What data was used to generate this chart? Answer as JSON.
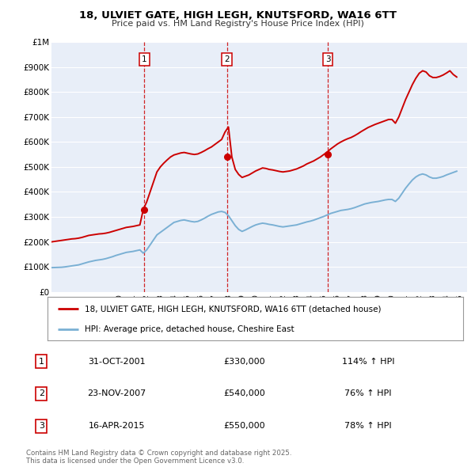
{
  "title": "18, ULVIET GATE, HIGH LEGH, KNUTSFORD, WA16 6TT",
  "subtitle": "Price paid vs. HM Land Registry's House Price Index (HPI)",
  "hpi_label": "HPI: Average price, detached house, Cheshire East",
  "property_label": "18, ULVIET GATE, HIGH LEGH, KNUTSFORD, WA16 6TT (detached house)",
  "property_color": "#cc0000",
  "hpi_color": "#7ab0d4",
  "bg_color": "#e8eef8",
  "grid_color": "#ffffff",
  "ylim": [
    0,
    1000000
  ],
  "yticks": [
    0,
    100000,
    200000,
    300000,
    400000,
    500000,
    600000,
    700000,
    800000,
    900000,
    1000000
  ],
  "ytick_labels": [
    "£0",
    "£100K",
    "£200K",
    "£300K",
    "£400K",
    "£500K",
    "£600K",
    "£700K",
    "£800K",
    "£900K",
    "£1M"
  ],
  "transactions": [
    {
      "num": 1,
      "date": "31-OCT-2001",
      "price": 330000,
      "year": 2001.83,
      "pct": "114%",
      "dir": "↑"
    },
    {
      "num": 2,
      "date": "23-NOV-2007",
      "price": 540000,
      "year": 2007.89,
      "pct": "76%",
      "dir": "↑"
    },
    {
      "num": 3,
      "date": "16-APR-2015",
      "price": 550000,
      "year": 2015.29,
      "pct": "78%",
      "dir": "↑"
    }
  ],
  "footer": "Contains HM Land Registry data © Crown copyright and database right 2025.\nThis data is licensed under the Open Government Licence v3.0.",
  "hpi_data": {
    "years": [
      1995.0,
      1995.25,
      1995.5,
      1995.75,
      1996.0,
      1996.25,
      1996.5,
      1996.75,
      1997.0,
      1997.25,
      1997.5,
      1997.75,
      1998.0,
      1998.25,
      1998.5,
      1998.75,
      1999.0,
      1999.25,
      1999.5,
      1999.75,
      2000.0,
      2000.25,
      2000.5,
      2000.75,
      2001.0,
      2001.25,
      2001.5,
      2001.75,
      2002.0,
      2002.25,
      2002.5,
      2002.75,
      2003.0,
      2003.25,
      2003.5,
      2003.75,
      2004.0,
      2004.25,
      2004.5,
      2004.75,
      2005.0,
      2005.25,
      2005.5,
      2005.75,
      2006.0,
      2006.25,
      2006.5,
      2006.75,
      2007.0,
      2007.25,
      2007.5,
      2007.75,
      2008.0,
      2008.25,
      2008.5,
      2008.75,
      2009.0,
      2009.25,
      2009.5,
      2009.75,
      2010.0,
      2010.25,
      2010.5,
      2010.75,
      2011.0,
      2011.25,
      2011.5,
      2011.75,
      2012.0,
      2012.25,
      2012.5,
      2012.75,
      2013.0,
      2013.25,
      2013.5,
      2013.75,
      2014.0,
      2014.25,
      2014.5,
      2014.75,
      2015.0,
      2015.25,
      2015.5,
      2015.75,
      2016.0,
      2016.25,
      2016.5,
      2016.75,
      2017.0,
      2017.25,
      2017.5,
      2017.75,
      2018.0,
      2018.25,
      2018.5,
      2018.75,
      2019.0,
      2019.25,
      2019.5,
      2019.75,
      2020.0,
      2020.25,
      2020.5,
      2020.75,
      2021.0,
      2021.25,
      2021.5,
      2021.75,
      2022.0,
      2022.25,
      2022.5,
      2022.75,
      2023.0,
      2023.25,
      2023.5,
      2023.75,
      2024.0,
      2024.25,
      2024.5,
      2024.75
    ],
    "values": [
      97000,
      97500,
      98000,
      98500,
      100000,
      102000,
      104000,
      106000,
      108000,
      112000,
      116000,
      120000,
      123000,
      126000,
      128000,
      130000,
      133000,
      137000,
      141000,
      146000,
      150000,
      154000,
      158000,
      160000,
      162000,
      165000,
      168000,
      155000,
      168000,
      188000,
      208000,
      228000,
      238000,
      248000,
      258000,
      268000,
      278000,
      282000,
      286000,
      288000,
      285000,
      282000,
      280000,
      282000,
      288000,
      295000,
      303000,
      310000,
      315000,
      320000,
      322000,
      318000,
      305000,
      285000,
      265000,
      250000,
      242000,
      248000,
      255000,
      262000,
      268000,
      272000,
      275000,
      273000,
      270000,
      268000,
      265000,
      262000,
      260000,
      262000,
      264000,
      266000,
      268000,
      272000,
      276000,
      280000,
      283000,
      287000,
      292000,
      297000,
      302000,
      308000,
      314000,
      318000,
      322000,
      326000,
      328000,
      330000,
      333000,
      337000,
      342000,
      347000,
      352000,
      355000,
      358000,
      360000,
      362000,
      365000,
      368000,
      370000,
      370000,
      362000,
      375000,
      395000,
      415000,
      432000,
      448000,
      460000,
      468000,
      472000,
      468000,
      460000,
      455000,
      455000,
      458000,
      462000,
      468000,
      473000,
      478000,
      483000
    ]
  },
  "property_data": {
    "years": [
      1995.0,
      1995.25,
      1995.5,
      1995.75,
      1996.0,
      1996.25,
      1996.5,
      1996.75,
      1997.0,
      1997.25,
      1997.5,
      1997.75,
      1998.0,
      1998.25,
      1998.5,
      1998.75,
      1999.0,
      1999.25,
      1999.5,
      1999.75,
      2000.0,
      2000.25,
      2000.5,
      2000.75,
      2001.0,
      2001.25,
      2001.5,
      2001.75,
      2002.0,
      2002.25,
      2002.5,
      2002.75,
      2003.0,
      2003.25,
      2003.5,
      2003.75,
      2004.0,
      2004.25,
      2004.5,
      2004.75,
      2005.0,
      2005.25,
      2005.5,
      2005.75,
      2006.0,
      2006.25,
      2006.5,
      2006.75,
      2007.0,
      2007.25,
      2007.5,
      2007.75,
      2008.0,
      2008.25,
      2008.5,
      2008.75,
      2009.0,
      2009.25,
      2009.5,
      2009.75,
      2010.0,
      2010.25,
      2010.5,
      2010.75,
      2011.0,
      2011.25,
      2011.5,
      2011.75,
      2012.0,
      2012.25,
      2012.5,
      2012.75,
      2013.0,
      2013.25,
      2013.5,
      2013.75,
      2014.0,
      2014.25,
      2014.5,
      2014.75,
      2015.0,
      2015.25,
      2015.5,
      2015.75,
      2016.0,
      2016.25,
      2016.5,
      2016.75,
      2017.0,
      2017.25,
      2017.5,
      2017.75,
      2018.0,
      2018.25,
      2018.5,
      2018.75,
      2019.0,
      2019.25,
      2019.5,
      2019.75,
      2020.0,
      2020.25,
      2020.5,
      2020.75,
      2021.0,
      2021.25,
      2021.5,
      2021.75,
      2022.0,
      2022.25,
      2022.5,
      2022.75,
      2023.0,
      2023.25,
      2023.5,
      2023.75,
      2024.0,
      2024.25,
      2024.5,
      2024.75
    ],
    "values": [
      200000,
      202000,
      204000,
      206000,
      208000,
      210000,
      212000,
      213000,
      215000,
      218000,
      222000,
      226000,
      228000,
      230000,
      232000,
      233000,
      235000,
      238000,
      242000,
      246000,
      250000,
      254000,
      258000,
      260000,
      262000,
      265000,
      268000,
      330000,
      360000,
      400000,
      440000,
      480000,
      500000,
      515000,
      528000,
      540000,
      548000,
      552000,
      556000,
      558000,
      555000,
      552000,
      550000,
      552000,
      558000,
      565000,
      573000,
      580000,
      590000,
      600000,
      610000,
      640000,
      660000,
      540000,
      490000,
      470000,
      458000,
      463000,
      468000,
      476000,
      484000,
      490000,
      496000,
      494000,
      490000,
      488000,
      485000,
      482000,
      480000,
      482000,
      484000,
      488000,
      492000,
      498000,
      504000,
      512000,
      518000,
      524000,
      532000,
      540000,
      550000,
      560000,
      572000,
      582000,
      592000,
      600000,
      607000,
      613000,
      618000,
      625000,
      633000,
      642000,
      650000,
      658000,
      664000,
      670000,
      675000,
      680000,
      685000,
      690000,
      690000,
      675000,
      700000,
      735000,
      770000,
      800000,
      830000,
      855000,
      875000,
      885000,
      880000,
      865000,
      858000,
      858000,
      862000,
      868000,
      876000,
      885000,
      870000,
      860000
    ]
  }
}
